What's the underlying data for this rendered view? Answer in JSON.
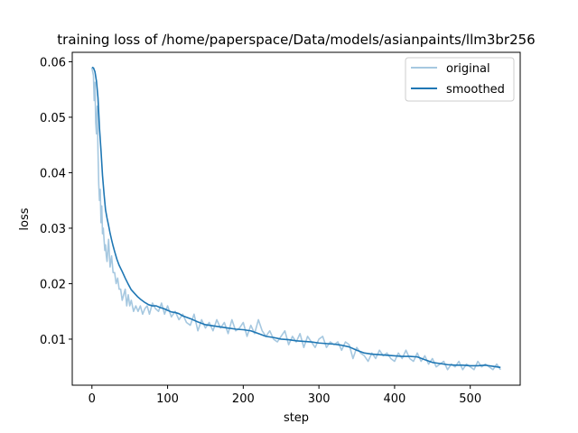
{
  "chart_data": {
    "type": "line",
    "title": "training loss of /home/paperspace/Data/models/asianpaints/llm3br256",
    "xlabel": "step",
    "ylabel": "loss",
    "xlim": [
      -26,
      566
    ],
    "ylim": [
      0.0017,
      0.0617
    ],
    "xticks": [
      0,
      100,
      200,
      300,
      400,
      500
    ],
    "xtick_labels": [
      "0",
      "100",
      "200",
      "300",
      "400",
      "500"
    ],
    "yticks": [
      0.01,
      0.02,
      0.03,
      0.04,
      0.05,
      0.06
    ],
    "ytick_labels": [
      "0.01",
      "0.02",
      "0.03",
      "0.04",
      "0.05",
      "0.06"
    ],
    "legend_position": "upper-right",
    "grid": false,
    "series": [
      {
        "name": "original",
        "color": "#a6c8e0",
        "x": [
          0,
          2,
          3,
          4,
          5,
          6,
          7,
          8,
          9,
          10,
          11,
          12,
          13,
          14,
          15,
          16,
          17,
          18,
          19,
          20,
          22,
          24,
          26,
          28,
          30,
          32,
          34,
          36,
          38,
          40,
          42,
          44,
          46,
          48,
          50,
          52,
          55,
          58,
          61,
          64,
          67,
          70,
          73,
          76,
          80,
          84,
          88,
          92,
          96,
          100,
          105,
          110,
          115,
          120,
          125,
          130,
          135,
          140,
          145,
          150,
          155,
          160,
          165,
          170,
          175,
          180,
          185,
          190,
          195,
          200,
          205,
          210,
          215,
          220,
          225,
          230,
          235,
          240,
          245,
          250,
          255,
          260,
          265,
          270,
          275,
          280,
          285,
          290,
          295,
          300,
          305,
          310,
          315,
          320,
          325,
          330,
          335,
          340,
          345,
          350,
          355,
          360,
          365,
          370,
          375,
          380,
          385,
          390,
          395,
          400,
          405,
          410,
          415,
          420,
          425,
          430,
          435,
          440,
          445,
          450,
          455,
          460,
          465,
          470,
          475,
          480,
          485,
          490,
          495,
          500,
          505,
          510,
          515,
          520,
          525,
          530,
          535,
          540
        ],
        "y": [
          0.0589,
          0.0575,
          0.053,
          0.0563,
          0.049,
          0.047,
          0.052,
          0.044,
          0.038,
          0.035,
          0.037,
          0.031,
          0.034,
          0.029,
          0.03,
          0.028,
          0.026,
          0.027,
          0.025,
          0.024,
          0.028,
          0.023,
          0.025,
          0.022,
          0.022,
          0.02,
          0.021,
          0.019,
          0.019,
          0.017,
          0.018,
          0.019,
          0.016,
          0.018,
          0.016,
          0.017,
          0.015,
          0.016,
          0.015,
          0.016,
          0.0145,
          0.0155,
          0.016,
          0.0145,
          0.0165,
          0.0155,
          0.015,
          0.0165,
          0.0145,
          0.016,
          0.014,
          0.015,
          0.0135,
          0.0145,
          0.013,
          0.0125,
          0.0145,
          0.0115,
          0.0135,
          0.012,
          0.013,
          0.0115,
          0.0135,
          0.012,
          0.013,
          0.011,
          0.0135,
          0.0115,
          0.012,
          0.013,
          0.0105,
          0.0125,
          0.011,
          0.0135,
          0.0115,
          0.0105,
          0.0115,
          0.01,
          0.0095,
          0.0105,
          0.0115,
          0.009,
          0.0105,
          0.0095,
          0.011,
          0.0085,
          0.0105,
          0.0095,
          0.0085,
          0.01,
          0.0105,
          0.0085,
          0.0095,
          0.009,
          0.0095,
          0.008,
          0.0095,
          0.009,
          0.0065,
          0.0085,
          0.0075,
          0.007,
          0.006,
          0.0075,
          0.0065,
          0.008,
          0.007,
          0.0075,
          0.0065,
          0.006,
          0.0075,
          0.0065,
          0.008,
          0.0065,
          0.006,
          0.0075,
          0.006,
          0.007,
          0.0055,
          0.0065,
          0.005,
          0.0055,
          0.006,
          0.0045,
          0.0055,
          0.005,
          0.006,
          0.0045,
          0.0055,
          0.005,
          0.0045,
          0.006,
          0.005,
          0.0055,
          0.005,
          0.0045,
          0.0055,
          0.0045
        ]
      },
      {
        "name": "smoothed",
        "color": "#1f77b4",
        "x": [
          0,
          2,
          4,
          6,
          8,
          10,
          12,
          14,
          16,
          18,
          20,
          22,
          24,
          26,
          28,
          30,
          33,
          36,
          40,
          44,
          48,
          52,
          56,
          60,
          65,
          70,
          75,
          80,
          85,
          90,
          95,
          100,
          105,
          110,
          115,
          120,
          130,
          140,
          150,
          160,
          170,
          180,
          190,
          200,
          210,
          220,
          230,
          240,
          250,
          260,
          270,
          280,
          290,
          300,
          310,
          320,
          330,
          340,
          350,
          360,
          370,
          380,
          390,
          400,
          410,
          420,
          430,
          440,
          450,
          460,
          470,
          480,
          490,
          500,
          510,
          520,
          530,
          540
        ],
        "y": [
          0.059,
          0.0589,
          0.0582,
          0.0565,
          0.0535,
          0.048,
          0.044,
          0.0395,
          0.0362,
          0.0333,
          0.0318,
          0.0305,
          0.0291,
          0.0279,
          0.0268,
          0.0258,
          0.0244,
          0.0233,
          0.0222,
          0.021,
          0.0199,
          0.0189,
          0.0183,
          0.0177,
          0.0171,
          0.0166,
          0.0162,
          0.016,
          0.016,
          0.0157,
          0.0155,
          0.0152,
          0.0149,
          0.0148,
          0.0146,
          0.0142,
          0.0137,
          0.0131,
          0.0126,
          0.0124,
          0.0122,
          0.012,
          0.0118,
          0.0117,
          0.0115,
          0.011,
          0.0105,
          0.0103,
          0.01,
          0.0099,
          0.0097,
          0.0096,
          0.0095,
          0.0093,
          0.0092,
          0.0091,
          0.0089,
          0.0086,
          0.008,
          0.0075,
          0.0073,
          0.0072,
          0.0071,
          0.007,
          0.0069,
          0.0069,
          0.0068,
          0.0063,
          0.0058,
          0.0056,
          0.0054,
          0.0053,
          0.0053,
          0.0052,
          0.0052,
          0.0053,
          0.0051,
          0.0049
        ]
      }
    ]
  }
}
